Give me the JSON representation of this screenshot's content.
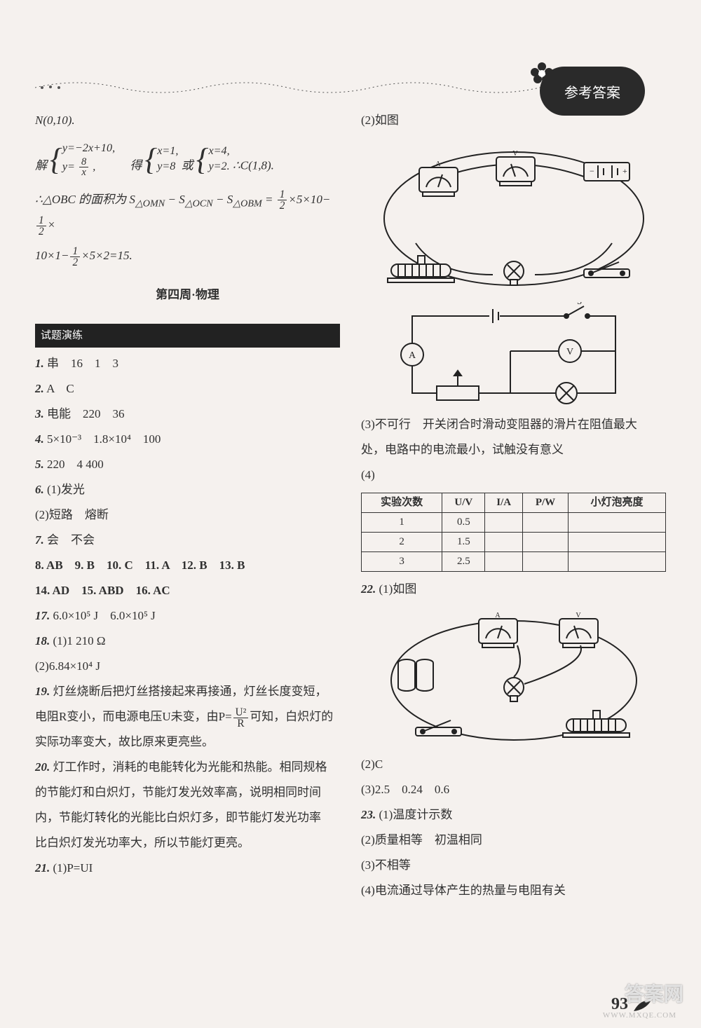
{
  "badge_text": "参考答案",
  "page_number": "93",
  "left": {
    "eq_top": "N(0,10).",
    "solve_label": "解",
    "sys1_a": "y=−2x+10,",
    "sys1_b_num": "8",
    "sys1_b_den": "x",
    "sys1_b_prefix": "y= ",
    "obtain": "得",
    "sys2_a": "x=1,",
    "sys2_b": "y=8",
    "or": "或",
    "sys3_a": "x=4,",
    "sys3_b": "y=2.",
    "conclusion_c": "∴C(1,8).",
    "area_line1_a": "∴△OBC 的面积为 S",
    "area_sub1": "△OMN",
    "area_sub2": "△OCN",
    "area_sub3": "△OBM",
    "area_line1_b": " = ",
    "area_val1": "×5×10−",
    "area_val2": "×",
    "area_line2": "10×1−",
    "area_val3": "×5×2=15.",
    "section_title": "第四周·物理",
    "header_block": "试题演练",
    "a1": "串　16　1　3",
    "a2": "A　C",
    "a3": "电能　220　36",
    "a4": "5×10⁻³　1.8×10⁴　100",
    "a5": "220　4 400",
    "a6_1": "(1)发光",
    "a6_2": "(2)短路　熔断",
    "a7": "会　不会",
    "a8_13": "8. AB　9. B　10. C　11. A　12. B　13. B",
    "a14_16": "14. AD　15. ABD　16. AC",
    "a17": "6.0×10⁵ J　6.0×10⁵ J",
    "a18_1": "(1)1 210 Ω",
    "a18_2": "(2)6.84×10⁴ J",
    "a19": "灯丝烧断后把灯丝搭接起来再接通，灯丝长度变短，",
    "a19b_pre": "电阻R变小，而电源电压U未变，由P=",
    "a19b_num": "U²",
    "a19b_den": "R",
    "a19b_post": "可知，白炽灯的",
    "a19c": "实际功率变大，故比原来更亮些。",
    "a20_l1": "灯工作时，消耗的电能转化为光能和热能。相同规格",
    "a20_l2": "的节能灯和白炽灯，节能灯发光效率高，说明相同时间",
    "a20_l3": "内，节能灯转化的光能比白炽灯多，即节能灯发光功率",
    "a20_l4": "比白炽灯发光功率大，所以节能灯更亮。",
    "a21": "(1)P=UI"
  },
  "right": {
    "r2": "(2)如图",
    "r3": "(3)不可行　开关闭合时滑动变阻器的滑片在阻值最大",
    "r3b": "处，电路中的电流最小，试触没有意义",
    "r4": "(4)",
    "table": {
      "columns": [
        "实验次数",
        "U/V",
        "I/A",
        "P/W",
        "小灯泡亮度"
      ],
      "rows": [
        [
          "1",
          "0.5",
          "",
          "",
          ""
        ],
        [
          "2",
          "1.5",
          "",
          "",
          ""
        ],
        [
          "3",
          "2.5",
          "",
          "",
          ""
        ]
      ]
    },
    "a22": "(1)如图",
    "a22_2": "(2)C",
    "a22_3": "(3)2.5　0.24　0.6",
    "a23_1": "(1)温度计示数",
    "a23_2": "(2)质量相等　初温相同",
    "a23_3": "(3)不相等",
    "a23_4": "(4)电流通过导体产生的热量与电阻有关"
  },
  "style": {
    "page_bg": "#f5f1ee",
    "text_color": "#303030",
    "base_fontsize": 17,
    "table_border": "#333",
    "badge_bg": "#2a2a2a",
    "badge_color": "#ffffff"
  },
  "circuit1": {
    "type": "circuit-diagram",
    "components": [
      "ammeter",
      "voltmeter",
      "battery",
      "switch",
      "rheostat",
      "bulb"
    ],
    "stroke": "#222",
    "stroke_width": 2
  },
  "circuit2": {
    "type": "schematic",
    "components": [
      "battery",
      "switch-S",
      "ammeter-A",
      "voltmeter-V",
      "resistor-box",
      "lamp"
    ],
    "stroke": "#222",
    "stroke_width": 2
  },
  "circuit3": {
    "type": "circuit-diagram",
    "components": [
      "ammeter",
      "voltmeter",
      "batteries",
      "switch",
      "bulb",
      "rheostat"
    ],
    "stroke": "#222",
    "stroke_width": 2
  }
}
